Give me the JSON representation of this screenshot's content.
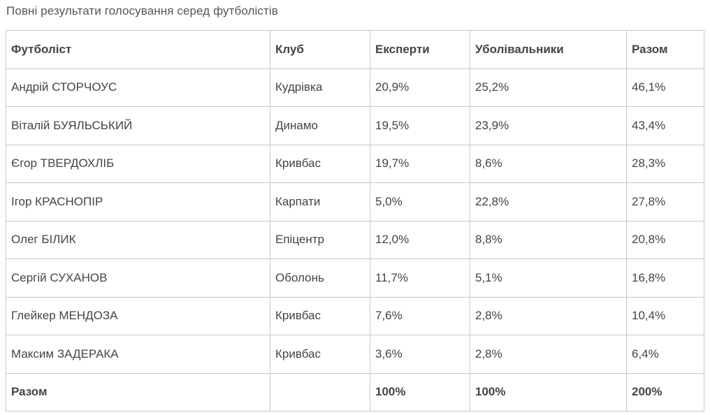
{
  "caption": "Повні результати голосування серед футболістів",
  "table": {
    "headers": {
      "player": "Футболіст",
      "club": "Клуб",
      "experts": "Експерти",
      "fans": "Уболівальники",
      "total": "Разом"
    },
    "rows": [
      {
        "player": "Андрій СТОРЧОУС",
        "club": "Кудрівка",
        "experts": "20,9%",
        "fans": "25,2%",
        "total": "46,1%"
      },
      {
        "player": "Віталій БУЯЛЬСЬКИЙ",
        "club": "Динамо",
        "experts": "19,5%",
        "fans": "23,9%",
        "total": "43,4%"
      },
      {
        "player": "Єгор ТВЕРДОХЛІБ",
        "club": "Кривбас",
        "experts": "19,7%",
        "fans": "8,6%",
        "total": "28,3%"
      },
      {
        "player": "Ігор КРАСНОПІР",
        "club": "Карпати",
        "experts": "5,0%",
        "fans": "22,8%",
        "total": "27,8%"
      },
      {
        "player": "Олег БІЛИК",
        "club": "Епіцентр",
        "experts": "12,0%",
        "fans": "8,8%",
        "total": "20,8%"
      },
      {
        "player": "Сергій СУХАНОВ",
        "club": "Оболонь",
        "experts": "11,7%",
        "fans": "5,1%",
        "total": "16,8%"
      },
      {
        "player": "Глейкер МЕНДОЗА",
        "club": "Кривбас",
        "experts": "7,6%",
        "fans": "2,8%",
        "total": "10,4%"
      },
      {
        "player": "Максим ЗАДЕРАКА",
        "club": "Кривбас",
        "experts": "3,6%",
        "fans": "2,8%",
        "total": "6,4%"
      }
    ],
    "footer": {
      "label": "Разом",
      "club": "",
      "experts": "100%",
      "fans": "100%",
      "total": "200%"
    }
  }
}
